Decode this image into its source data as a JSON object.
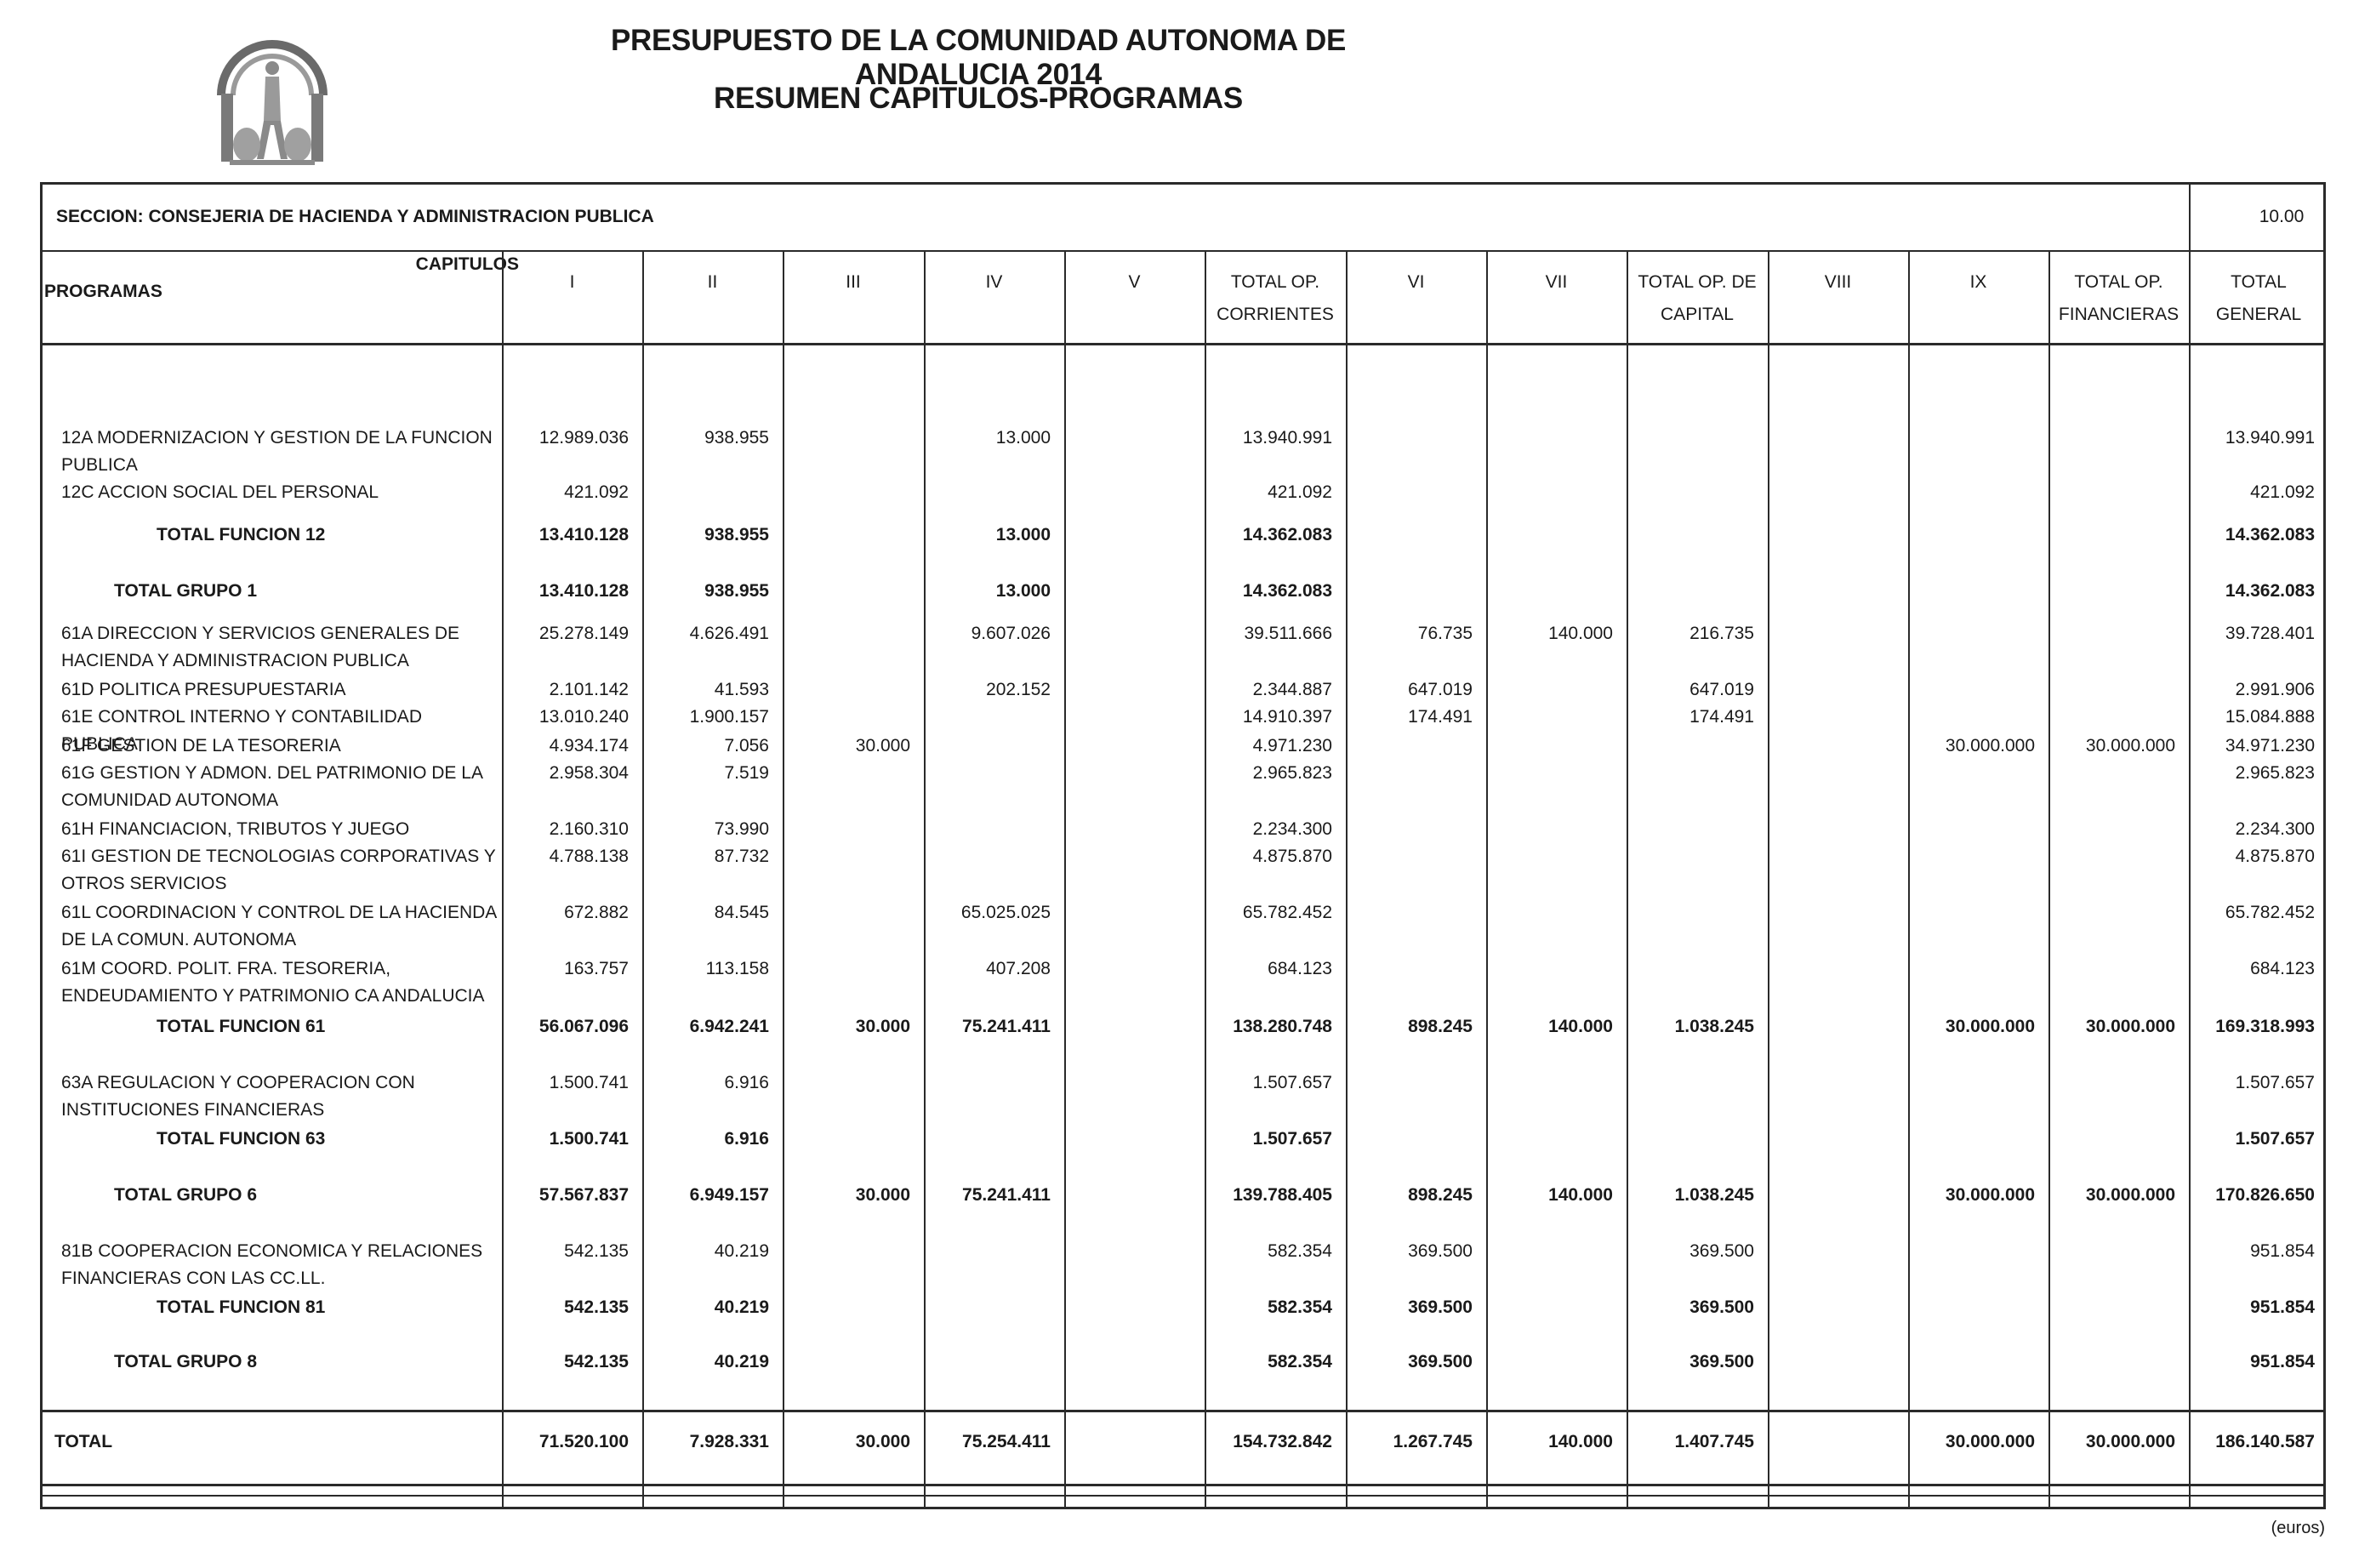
{
  "header": {
    "title": "PRESUPUESTO DE LA COMUNIDAD AUTONOMA DE ANDALUCIA 2014",
    "subtitle": "RESUMEN CAPITULOS-PROGRAMAS"
  },
  "logo_icon": "andalucia-coat-of-arms",
  "seccion": {
    "label": "SECCION: CONSEJERIA DE HACIENDA Y ADMINISTRACION PUBLICA",
    "code": "10.00"
  },
  "columns": {
    "capitulos_label": "CAPITULOS",
    "programas_label": "PROGRAMAS",
    "headers": [
      "I",
      "II",
      "III",
      "IV",
      "V",
      "TOTAL OP. CORRIENTES",
      "VI",
      "VII",
      "TOTAL OP. DE CAPITAL",
      "VIII",
      "IX",
      "TOTAL OP. FINANCIERAS",
      "TOTAL GENERAL"
    ]
  },
  "rows": [
    {
      "label": "12A MODERNIZACION Y GESTION DE LA FUNCION PUBLICA",
      "total": false,
      "values": [
        "12.989.036",
        "938.955",
        "",
        "13.000",
        "",
        "13.940.991",
        "",
        "",
        "",
        "",
        "",
        "",
        "13.940.991"
      ]
    },
    {
      "label": "12C ACCION SOCIAL DEL PERSONAL",
      "total": false,
      "values": [
        "421.092",
        "",
        "",
        "",
        "",
        "421.092",
        "",
        "",
        "",
        "",
        "",
        "",
        "421.092"
      ]
    },
    {
      "label": "TOTAL FUNCION 12",
      "total": true,
      "indent": 2,
      "values": [
        "13.410.128",
        "938.955",
        "",
        "13.000",
        "",
        "14.362.083",
        "",
        "",
        "",
        "",
        "",
        "",
        "14.362.083"
      ]
    },
    {
      "label": "TOTAL GRUPO 1",
      "total": true,
      "indent": 1,
      "values": [
        "13.410.128",
        "938.955",
        "",
        "13.000",
        "",
        "14.362.083",
        "",
        "",
        "",
        "",
        "",
        "",
        "14.362.083"
      ]
    },
    {
      "label": "61A DIRECCION Y SERVICIOS GENERALES DE HACIENDA Y ADMINISTRACION PUBLICA",
      "total": false,
      "values": [
        "25.278.149",
        "4.626.491",
        "",
        "9.607.026",
        "",
        "39.511.666",
        "76.735",
        "140.000",
        "216.735",
        "",
        "",
        "",
        "39.728.401"
      ]
    },
    {
      "label": "61D POLITICA PRESUPUESTARIA",
      "total": false,
      "values": [
        "2.101.142",
        "41.593",
        "",
        "202.152",
        "",
        "2.344.887",
        "647.019",
        "",
        "647.019",
        "",
        "",
        "",
        "2.991.906"
      ]
    },
    {
      "label": "61E CONTROL INTERNO Y CONTABILIDAD PUBLICA",
      "total": false,
      "values": [
        "13.010.240",
        "1.900.157",
        "",
        "",
        "",
        "14.910.397",
        "174.491",
        "",
        "174.491",
        "",
        "",
        "",
        "15.084.888"
      ]
    },
    {
      "label": "61F GESTION DE LA TESORERIA",
      "total": false,
      "values": [
        "4.934.174",
        "7.056",
        "30.000",
        "",
        "",
        "4.971.230",
        "",
        "",
        "",
        "",
        "30.000.000",
        "30.000.000",
        "34.971.230"
      ]
    },
    {
      "label": "61G GESTION Y ADMON. DEL PATRIMONIO DE LA COMUNIDAD AUTONOMA",
      "total": false,
      "values": [
        "2.958.304",
        "7.519",
        "",
        "",
        "",
        "2.965.823",
        "",
        "",
        "",
        "",
        "",
        "",
        "2.965.823"
      ]
    },
    {
      "label": "61H FINANCIACION, TRIBUTOS Y JUEGO",
      "total": false,
      "values": [
        "2.160.310",
        "73.990",
        "",
        "",
        "",
        "2.234.300",
        "",
        "",
        "",
        "",
        "",
        "",
        "2.234.300"
      ]
    },
    {
      "label": "61I GESTION DE TECNOLOGIAS CORPORATIVAS Y OTROS SERVICIOS",
      "total": false,
      "values": [
        "4.788.138",
        "87.732",
        "",
        "",
        "",
        "4.875.870",
        "",
        "",
        "",
        "",
        "",
        "",
        "4.875.870"
      ]
    },
    {
      "label": "61L COORDINACION Y CONTROL DE LA HACIENDA DE LA COMUN. AUTONOMA",
      "total": false,
      "values": [
        "672.882",
        "84.545",
        "",
        "65.025.025",
        "",
        "65.782.452",
        "",
        "",
        "",
        "",
        "",
        "",
        "65.782.452"
      ]
    },
    {
      "label": "61M COORD. POLIT. FRA. TESORERIA, ENDEUDAMIENTO Y PATRIMONIO CA ANDALUCIA",
      "total": false,
      "values": [
        "163.757",
        "113.158",
        "",
        "407.208",
        "",
        "684.123",
        "",
        "",
        "",
        "",
        "",
        "",
        "684.123"
      ]
    },
    {
      "label": "TOTAL FUNCION 61",
      "total": true,
      "indent": 2,
      "values": [
        "56.067.096",
        "6.942.241",
        "30.000",
        "75.241.411",
        "",
        "138.280.748",
        "898.245",
        "140.000",
        "1.038.245",
        "",
        "30.000.000",
        "30.000.000",
        "169.318.993"
      ]
    },
    {
      "label": "63A REGULACION Y COOPERACION CON INSTITUCIONES FINANCIERAS",
      "total": false,
      "values": [
        "1.500.741",
        "6.916",
        "",
        "",
        "",
        "1.507.657",
        "",
        "",
        "",
        "",
        "",
        "",
        "1.507.657"
      ]
    },
    {
      "label": "TOTAL FUNCION 63",
      "total": true,
      "indent": 2,
      "values": [
        "1.500.741",
        "6.916",
        "",
        "",
        "",
        "1.507.657",
        "",
        "",
        "",
        "",
        "",
        "",
        "1.507.657"
      ]
    },
    {
      "label": "TOTAL GRUPO 6",
      "total": true,
      "indent": 1,
      "values": [
        "57.567.837",
        "6.949.157",
        "30.000",
        "75.241.411",
        "",
        "139.788.405",
        "898.245",
        "140.000",
        "1.038.245",
        "",
        "30.000.000",
        "30.000.000",
        "170.826.650"
      ]
    },
    {
      "label": "81B COOPERACION ECONOMICA Y RELACIONES FINANCIERAS CON LAS CC.LL.",
      "total": false,
      "values": [
        "542.135",
        "40.219",
        "",
        "",
        "",
        "582.354",
        "369.500",
        "",
        "369.500",
        "",
        "",
        "",
        "951.854"
      ]
    },
    {
      "label": "TOTAL FUNCION 81",
      "total": true,
      "indent": 2,
      "values": [
        "542.135",
        "40.219",
        "",
        "",
        "",
        "582.354",
        "369.500",
        "",
        "369.500",
        "",
        "",
        "",
        "951.854"
      ]
    },
    {
      "label": "TOTAL GRUPO 8",
      "total": true,
      "indent": 1,
      "values": [
        "542.135",
        "40.219",
        "",
        "",
        "",
        "582.354",
        "369.500",
        "",
        "369.500",
        "",
        "",
        "",
        "951.854"
      ]
    }
  ],
  "grand_total": {
    "label": "TOTAL",
    "values": [
      "71.520.100",
      "7.928.331",
      "30.000",
      "75.254.411",
      "",
      "154.732.842",
      "1.267.745",
      "140.000",
      "1.407.745",
      "",
      "30.000.000",
      "30.000.000",
      "186.140.587"
    ]
  },
  "footer": {
    "units": "(euros)"
  }
}
